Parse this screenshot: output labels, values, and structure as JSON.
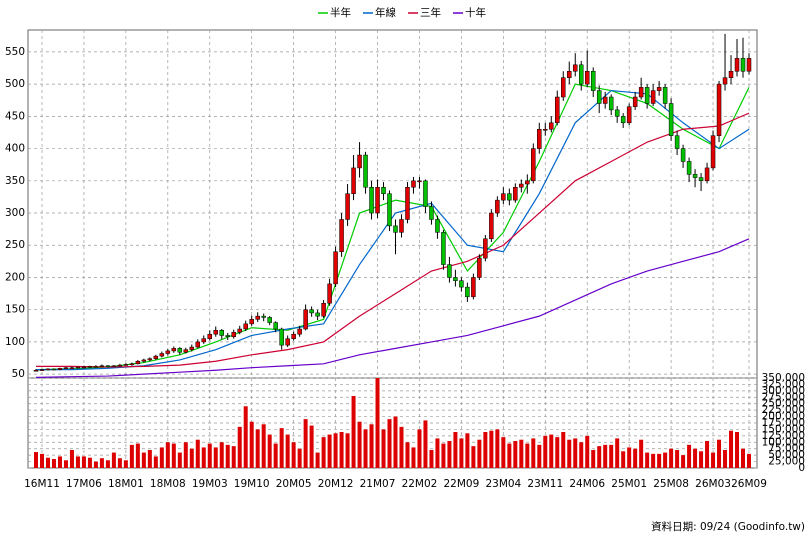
{
  "chart_data": {
    "type": "candlestick",
    "categories": [
      null,
      "16M11",
      null,
      null,
      null,
      null,
      null,
      null,
      "17M06",
      null,
      null,
      null,
      null,
      null,
      null,
      "18M01",
      null,
      null,
      null,
      null,
      null,
      null,
      "18M08",
      null,
      null,
      null,
      null,
      null,
      null,
      "19M03",
      null,
      null,
      null,
      null,
      null,
      null,
      "19M10",
      null,
      null,
      null,
      null,
      null,
      null,
      "20M05",
      null,
      null,
      null,
      null,
      null,
      null,
      "20M12",
      null,
      null,
      null,
      null,
      null,
      null,
      "21M07",
      null,
      null,
      null,
      null,
      null,
      null,
      "22M02",
      null,
      null,
      null,
      null,
      null,
      null,
      "22M09",
      null,
      null,
      null,
      null,
      null,
      null,
      "23M04",
      null,
      null,
      null,
      null,
      null,
      null,
      "23M11",
      null,
      null,
      null,
      null,
      null,
      null,
      "24M06",
      null,
      null,
      null,
      null,
      null,
      null,
      "25M01",
      null,
      null,
      null,
      null,
      null,
      null,
      "25M08",
      null,
      null,
      null,
      null,
      null,
      null,
      "26M03",
      null,
      null,
      null,
      null,
      null,
      "26M09"
    ],
    "ohlc": [
      [
        55,
        58,
        54,
        56
      ],
      [
        56,
        58,
        55,
        57
      ],
      [
        57,
        59,
        56,
        58
      ],
      [
        58,
        59,
        56,
        57
      ],
      [
        57,
        60,
        56,
        59
      ],
      [
        59,
        61,
        58,
        60
      ],
      [
        60,
        62,
        59,
        60
      ],
      [
        60,
        62,
        59,
        61
      ],
      [
        61,
        63,
        60,
        61
      ],
      [
        61,
        63,
        60,
        62
      ],
      [
        62,
        64,
        61,
        62
      ],
      [
        62,
        65,
        61,
        63
      ],
      [
        63,
        64,
        60,
        62
      ],
      [
        62,
        64,
        61,
        63
      ],
      [
        63,
        66,
        62,
        64
      ],
      [
        64,
        67,
        63,
        65
      ],
      [
        65,
        68,
        63,
        66
      ],
      [
        66,
        72,
        65,
        70
      ],
      [
        70,
        74,
        68,
        72
      ],
      [
        72,
        76,
        70,
        74
      ],
      [
        74,
        80,
        72,
        78
      ],
      [
        78,
        85,
        76,
        82
      ],
      [
        82,
        89,
        79,
        86
      ],
      [
        86,
        93,
        83,
        90
      ],
      [
        90,
        92,
        80,
        84
      ],
      [
        84,
        91,
        82,
        88
      ],
      [
        88,
        96,
        85,
        92
      ],
      [
        92,
        104,
        90,
        100
      ],
      [
        100,
        110,
        97,
        105
      ],
      [
        105,
        118,
        102,
        112
      ],
      [
        112,
        124,
        108,
        118
      ],
      [
        118,
        120,
        104,
        110
      ],
      [
        110,
        114,
        103,
        108
      ],
      [
        108,
        119,
        105,
        115
      ],
      [
        115,
        125,
        112,
        120
      ],
      [
        120,
        133,
        117,
        128
      ],
      [
        128,
        141,
        125,
        135
      ],
      [
        135,
        146,
        131,
        140
      ],
      [
        140,
        144,
        132,
        138
      ],
      [
        138,
        140,
        126,
        130
      ],
      [
        130,
        132,
        115,
        120
      ],
      [
        120,
        122,
        88,
        95
      ],
      [
        95,
        110,
        92,
        105
      ],
      [
        105,
        116,
        102,
        112
      ],
      [
        112,
        125,
        108,
        120
      ],
      [
        120,
        158,
        118,
        150
      ],
      [
        150,
        155,
        139,
        145
      ],
      [
        145,
        150,
        134,
        140
      ],
      [
        140,
        165,
        137,
        160
      ],
      [
        160,
        198,
        156,
        190
      ],
      [
        190,
        248,
        185,
        240
      ],
      [
        240,
        300,
        232,
        290
      ],
      [
        290,
        345,
        280,
        330
      ],
      [
        330,
        390,
        320,
        370
      ],
      [
        370,
        410,
        355,
        390
      ],
      [
        390,
        395,
        330,
        340
      ],
      [
        340,
        350,
        290,
        300
      ],
      [
        300,
        352,
        292,
        340
      ],
      [
        340,
        348,
        320,
        330
      ],
      [
        330,
        335,
        272,
        280
      ],
      [
        280,
        290,
        236,
        270
      ],
      [
        270,
        298,
        262,
        290
      ],
      [
        290,
        348,
        284,
        340
      ],
      [
        340,
        356,
        330,
        350
      ],
      [
        350,
        356,
        338,
        350
      ],
      [
        350,
        352,
        300,
        310
      ],
      [
        310,
        318,
        282,
        290
      ],
      [
        290,
        296,
        260,
        270
      ],
      [
        270,
        274,
        212,
        220
      ],
      [
        220,
        232,
        192,
        200
      ],
      [
        200,
        212,
        186,
        195
      ],
      [
        195,
        200,
        178,
        185
      ],
      [
        185,
        192,
        162,
        170
      ],
      [
        170,
        206,
        166,
        200
      ],
      [
        200,
        236,
        196,
        230
      ],
      [
        230,
        266,
        225,
        260
      ],
      [
        260,
        306,
        255,
        300
      ],
      [
        300,
        326,
        294,
        320
      ],
      [
        320,
        340,
        314,
        330
      ],
      [
        330,
        338,
        312,
        320
      ],
      [
        320,
        346,
        316,
        340
      ],
      [
        340,
        352,
        332,
        345
      ],
      [
        345,
        360,
        330,
        350
      ],
      [
        350,
        408,
        346,
        400
      ],
      [
        400,
        440,
        392,
        430
      ],
      [
        430,
        440,
        420,
        430
      ],
      [
        430,
        450,
        425,
        440
      ],
      [
        440,
        490,
        436,
        480
      ],
      [
        480,
        520,
        474,
        510
      ],
      [
        510,
        535,
        500,
        520
      ],
      [
        520,
        548,
        512,
        530
      ],
      [
        530,
        536,
        490,
        500
      ],
      [
        500,
        552,
        495,
        520
      ],
      [
        520,
        526,
        480,
        490
      ],
      [
        490,
        498,
        455,
        470
      ],
      [
        470,
        488,
        462,
        480
      ],
      [
        480,
        484,
        452,
        460
      ],
      [
        460,
        466,
        440,
        450
      ],
      [
        450,
        455,
        432,
        440
      ],
      [
        440,
        470,
        436,
        465
      ],
      [
        465,
        488,
        460,
        480
      ],
      [
        480,
        510,
        476,
        495
      ],
      [
        495,
        500,
        462,
        470
      ],
      [
        470,
        500,
        466,
        490
      ],
      [
        490,
        505,
        482,
        495
      ],
      [
        495,
        500,
        462,
        470
      ],
      [
        470,
        478,
        412,
        420
      ],
      [
        420,
        428,
        390,
        400
      ],
      [
        400,
        406,
        370,
        380
      ],
      [
        380,
        386,
        348,
        360
      ],
      [
        360,
        368,
        340,
        355
      ],
      [
        355,
        362,
        334,
        350
      ],
      [
        350,
        378,
        346,
        370
      ],
      [
        370,
        428,
        366,
        420
      ],
      [
        420,
        505,
        410,
        500
      ],
      [
        500,
        578,
        490,
        510
      ],
      [
        510,
        545,
        500,
        520
      ],
      [
        520,
        570,
        512,
        540
      ],
      [
        540,
        572,
        510,
        520
      ],
      [
        520,
        548,
        515,
        540
      ]
    ],
    "up_color": "#e00000",
    "down_color": "#00c000",
    "volume": {
      "color": "#dd0000",
      "values": [
        62000,
        55000,
        40000,
        35000,
        45000,
        30000,
        70000,
        45000,
        45000,
        40000,
        25000,
        38000,
        30000,
        60000,
        38000,
        30000,
        90000,
        95000,
        60000,
        70000,
        45000,
        80000,
        100000,
        95000,
        60000,
        100000,
        75000,
        110000,
        80000,
        95000,
        80000,
        100000,
        90000,
        85000,
        160000,
        240000,
        180000,
        150000,
        170000,
        130000,
        95000,
        155000,
        130000,
        100000,
        75000,
        190000,
        165000,
        60000,
        120000,
        130000,
        135000,
        140000,
        135000,
        280000,
        180000,
        150000,
        170000,
        350000,
        150000,
        190000,
        200000,
        160000,
        100000,
        80000,
        150000,
        185000,
        70000,
        115000,
        95000,
        105000,
        140000,
        115000,
        135000,
        85000,
        110000,
        140000,
        145000,
        150000,
        120000,
        95000,
        105000,
        110000,
        95000,
        115000,
        90000,
        125000,
        130000,
        120000,
        140000,
        110000,
        115000,
        100000,
        125000,
        70000,
        85000,
        90000,
        90000,
        115000,
        65000,
        80000,
        75000,
        110000,
        60000,
        55000,
        55000,
        60000,
        75000,
        70000,
        50000,
        90000,
        75000,
        65000,
        105000,
        60000,
        110000,
        70000,
        145000,
        140000,
        75000,
        55000
      ],
      "ylim": [
        0,
        350000
      ],
      "yticks": [
        0,
        {
          "value": 25000,
          "label": "25,000"
        },
        {
          "value": 50000,
          "label": "50,000"
        },
        {
          "value": 75000,
          "label": "75,000"
        },
        {
          "value": 100000,
          "label": "100,000"
        },
        {
          "value": 125000,
          "label": "125,000"
        },
        {
          "value": 150000,
          "label": "150,000"
        },
        {
          "value": 175000,
          "label": "175,000"
        },
        {
          "value": 200000,
          "label": "200,000"
        },
        {
          "value": 225000,
          "label": "225,000"
        },
        {
          "value": 250000,
          "label": "250,000"
        },
        {
          "value": 275000,
          "label": "275,000"
        },
        {
          "value": 300000,
          "label": "300,000"
        },
        {
          "value": 325000,
          "label": "325,000"
        },
        {
          "value": 350000,
          "label": "350,000"
        }
      ]
    },
    "series": [
      {
        "name": "半年",
        "color": "#00cc00",
        "x": [
          0,
          6,
          12,
          18,
          24,
          30,
          36,
          42,
          48,
          54,
          60,
          66,
          72,
          78,
          84,
          90,
          96,
          102,
          108,
          114,
          119
        ],
        "values": [
          57,
          58,
          61,
          68,
          80,
          100,
          122,
          118,
          135,
          300,
          320,
          310,
          210,
          270,
          380,
          500,
          490,
          470,
          430,
          400,
          495
        ]
      },
      {
        "name": "年線",
        "color": "#0066cc",
        "x": [
          0,
          6,
          12,
          18,
          24,
          30,
          36,
          42,
          48,
          54,
          60,
          66,
          72,
          78,
          84,
          90,
          96,
          102,
          108,
          114,
          119
        ],
        "values": [
          57,
          57,
          59,
          63,
          72,
          88,
          110,
          120,
          128,
          220,
          300,
          315,
          250,
          240,
          330,
          440,
          490,
          485,
          440,
          400,
          430
        ]
      },
      {
        "name": "三年",
        "color": "#cc0033",
        "x": [
          0,
          6,
          12,
          18,
          24,
          30,
          36,
          42,
          48,
          54,
          60,
          66,
          72,
          78,
          84,
          90,
          96,
          102,
          108,
          114,
          119
        ],
        "values": [
          62,
          62,
          61,
          62,
          64,
          70,
          80,
          88,
          100,
          140,
          175,
          210,
          225,
          250,
          300,
          350,
          380,
          410,
          430,
          435,
          455
        ]
      },
      {
        "name": "十年",
        "color": "#6600cc",
        "x": [
          0,
          6,
          12,
          18,
          24,
          30,
          36,
          42,
          48,
          54,
          60,
          66,
          72,
          78,
          84,
          90,
          96,
          102,
          108,
          114,
          119
        ],
        "values": [
          45,
          46,
          47,
          50,
          53,
          56,
          60,
          63,
          66,
          80,
          90,
          100,
          110,
          125,
          140,
          165,
          190,
          210,
          225,
          240,
          260
        ]
      }
    ],
    "ylim": [
      44,
      584
    ],
    "yticks": [
      50,
      100,
      150,
      200,
      250,
      300,
      350,
      400,
      450,
      500,
      550
    ],
    "grid": true,
    "footer": "資料日期: 09/24 (Goodinfo.tw)"
  }
}
